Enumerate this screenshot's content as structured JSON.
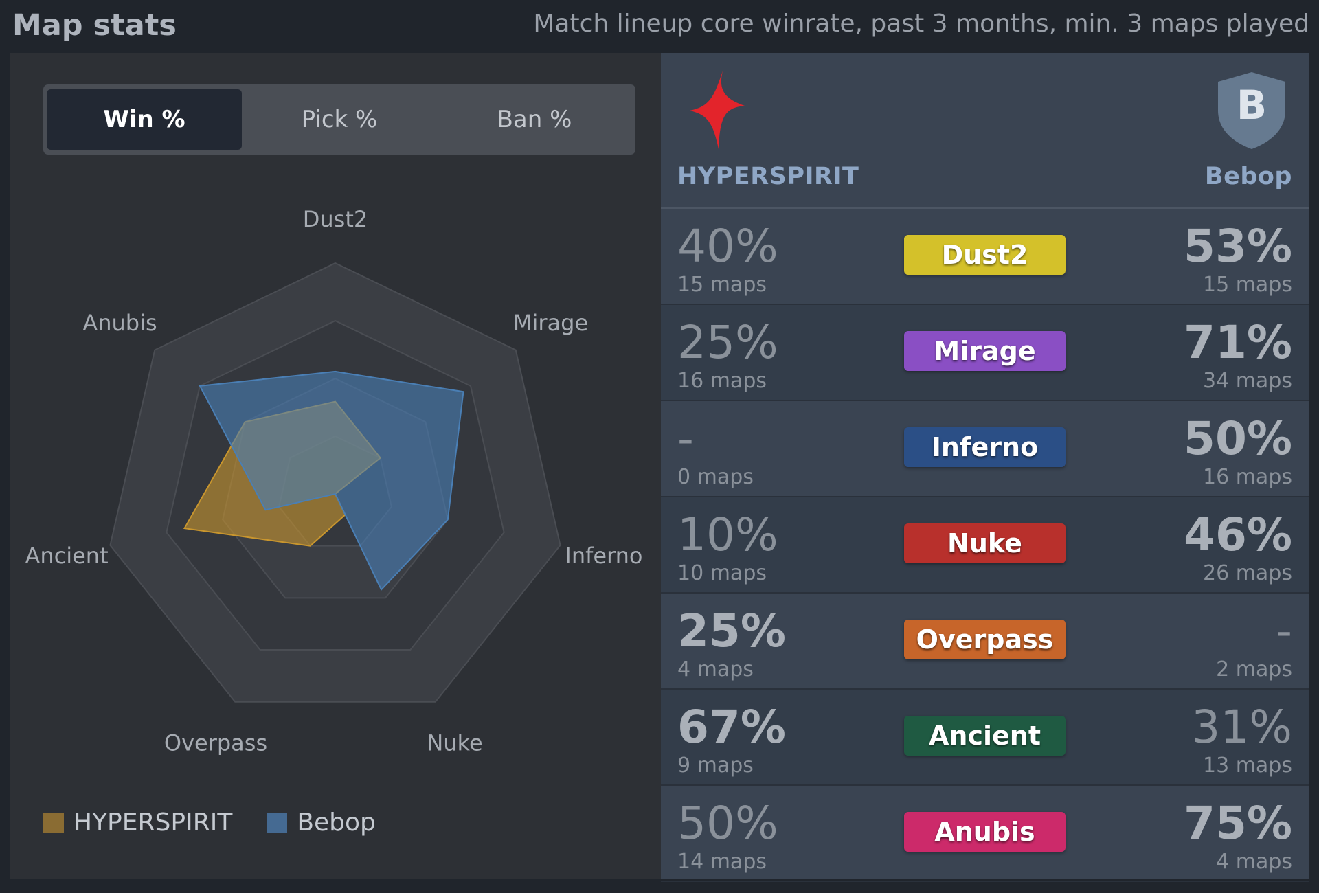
{
  "header": {
    "title": "Map stats",
    "subtitle": "Match lineup core winrate, past 3 months, min. 3 maps played"
  },
  "tabs": [
    "Win %",
    "Pick %",
    "Ban %"
  ],
  "active_tab": "Win %",
  "teams": {
    "left": {
      "name": "HYPERSPIRIT",
      "color": "#c9962e",
      "logo": "star-burst-logo"
    },
    "right": {
      "name": "Bebop",
      "color": "#4a7fb5",
      "logo_letter": "B",
      "logo": "shield-logo"
    }
  },
  "legend": [
    "HYPERSPIRIT",
    "Bebop"
  ],
  "chart_data": {
    "type": "radar",
    "axes": [
      "Dust2",
      "Mirage",
      "Inferno",
      "Nuke",
      "Overpass",
      "Ancient",
      "Anubis"
    ],
    "range": [
      0,
      100
    ],
    "series": [
      {
        "name": "HYPERSPIRIT",
        "values": [
          40,
          25,
          0,
          10,
          25,
          67,
          50
        ],
        "color": "#c9962e"
      },
      {
        "name": "Bebop",
        "values": [
          53,
          71,
          50,
          46,
          0,
          31,
          75
        ],
        "color": "#4a7fb5"
      }
    ]
  },
  "maps": [
    {
      "name": "Dust2",
      "left_value": "40%",
      "left_maps": "15 maps",
      "right_value": "53%",
      "right_maps": "15 maps",
      "winner": "right",
      "badge_color": "#d4c12a"
    },
    {
      "name": "Mirage",
      "left_value": "25%",
      "left_maps": "16 maps",
      "right_value": "71%",
      "right_maps": "34 maps",
      "winner": "right",
      "badge_color": "#8a4fc4"
    },
    {
      "name": "Inferno",
      "left_value": "-",
      "left_maps": "0 maps",
      "right_value": "50%",
      "right_maps": "16 maps",
      "winner": "right",
      "badge_color": "#2b4f86"
    },
    {
      "name": "Nuke",
      "left_value": "10%",
      "left_maps": "10 maps",
      "right_value": "46%",
      "right_maps": "26 maps",
      "winner": "right",
      "badge_color": "#b8302c"
    },
    {
      "name": "Overpass",
      "left_value": "25%",
      "left_maps": "4 maps",
      "right_value": "-",
      "right_maps": "2 maps",
      "winner": "left",
      "badge_color": "#c7652a"
    },
    {
      "name": "Ancient",
      "left_value": "67%",
      "left_maps": "9 maps",
      "right_value": "31%",
      "right_maps": "13 maps",
      "winner": "left",
      "badge_color": "#1f5a42"
    },
    {
      "name": "Anubis",
      "left_value": "50%",
      "left_maps": "14 maps",
      "right_value": "75%",
      "right_maps": "4 maps",
      "winner": "right",
      "badge_color": "#cc2a6a"
    }
  ]
}
